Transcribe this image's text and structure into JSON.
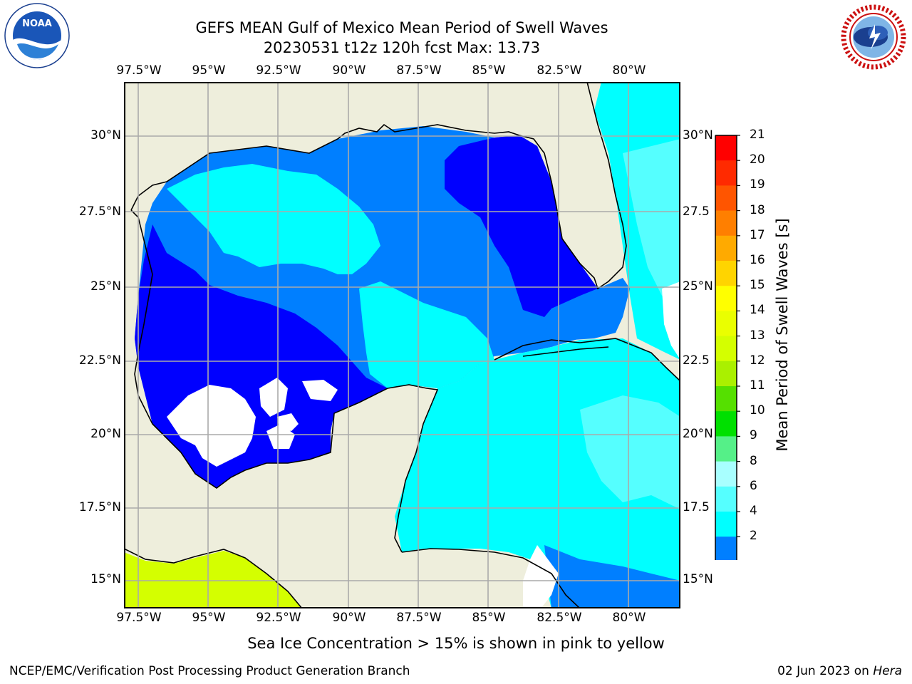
{
  "title_line1": "GEFS MEAN Gulf of Mexico Mean Period of Swell Waves",
  "title_line2": "20230531 t12z 120h fcst   Max: 13.73",
  "lon_labels": [
    "97.5°W",
    "95°W",
    "92.5°W",
    "90°W",
    "87.5°W",
    "85°W",
    "82.5°W",
    "80°W"
  ],
  "lat_labels": [
    "30°N",
    "27.5°N",
    "25°N",
    "22.5°N",
    "20°N",
    "17.5°N",
    "15°N"
  ],
  "lat_labels_right": [
    "30°N",
    "27.5",
    "25°N",
    "22.5",
    "20°N",
    "17.5",
    "15°N"
  ],
  "colorbar": {
    "title": "Mean Period of Swell Waves [s]",
    "ticks": [
      "21",
      "20",
      "19",
      "18",
      "17",
      "16",
      "15",
      "14",
      "13",
      "12",
      "11",
      "10",
      "9",
      "8",
      "6",
      "4",
      "2"
    ],
    "colors": [
      "#ff0000",
      "#ff2a00",
      "#ff5500",
      "#ff7f00",
      "#ffaa00",
      "#ffd400",
      "#ffff00",
      "#eaff00",
      "#d4ff00",
      "#aaf000",
      "#55e000",
      "#00e000",
      "#55f088",
      "#a8ffff",
      "#55ffff",
      "#00ffff",
      "#007fff"
    ],
    "under_color": "#0000ff"
  },
  "colors": {
    "land": "#eeeedc",
    "swell_2_4": "#007fff",
    "swell_4_6": "#00ffff",
    "swell_6_8": "#55ffff",
    "swell_under_2": "#0000ff",
    "pacific_high": "#d4ff00"
  },
  "note": "Sea Ice Concentration > 15% is shown in pink to yellow",
  "footer_left": "NCEP/EMC/Verification Post Processing Product Generation Branch",
  "footer_date": "02 Jun 2023 on ",
  "footer_machine": "Hera",
  "logos": {
    "left": "NOAA",
    "right": "NATIONAL WEATHER SERVICE"
  }
}
